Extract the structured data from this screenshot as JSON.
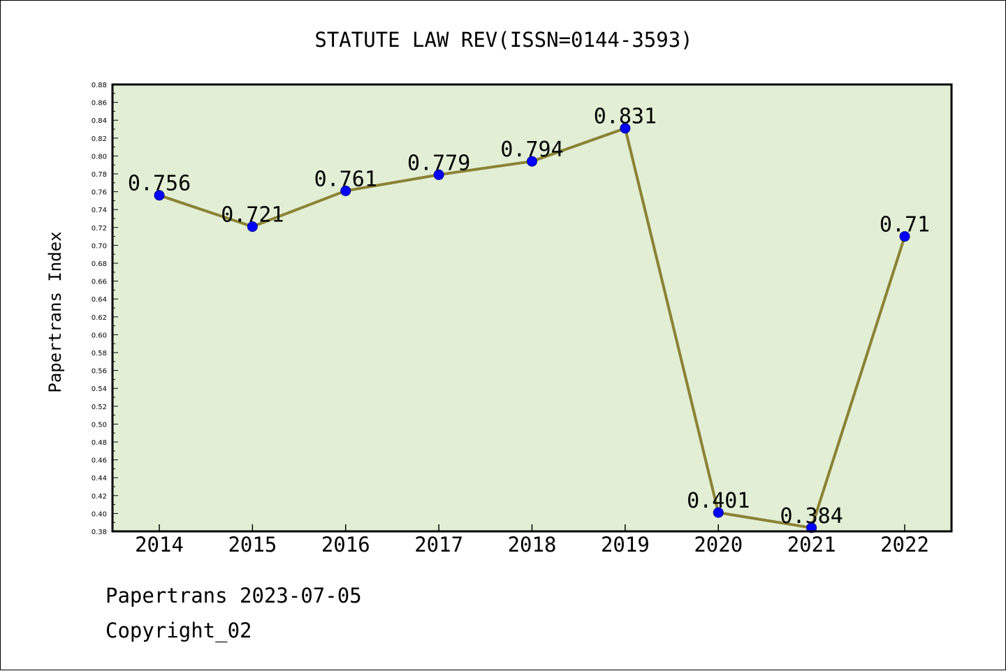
{
  "footer": {
    "line1": "Papertrans 2023-07-05",
    "line2": "Copyright_02"
  },
  "chart_data": {
    "type": "line",
    "title": "STATUTE LAW REV(ISSN=0144-3593)",
    "xlabel": "",
    "ylabel": "Papertrans Index",
    "categories": [
      "2014",
      "2015",
      "2016",
      "2017",
      "2018",
      "2019",
      "2020",
      "2021",
      "2022"
    ],
    "series": [
      {
        "values": [
          0.756,
          0.721,
          0.761,
          0.779,
          0.794,
          0.831,
          0.401,
          0.384,
          0.71
        ],
        "labels": [
          "0.756",
          "0.721",
          "0.761",
          "0.779",
          "0.794",
          "0.831",
          "0.401",
          "0.384",
          "0.71"
        ]
      }
    ],
    "ylim": [
      0.38,
      0.88
    ],
    "ytick_step": 0.02,
    "grid": false,
    "colors": {
      "plot_background": "#e2efd5",
      "line": "#8b8234",
      "marker": "#0000ff"
    }
  }
}
